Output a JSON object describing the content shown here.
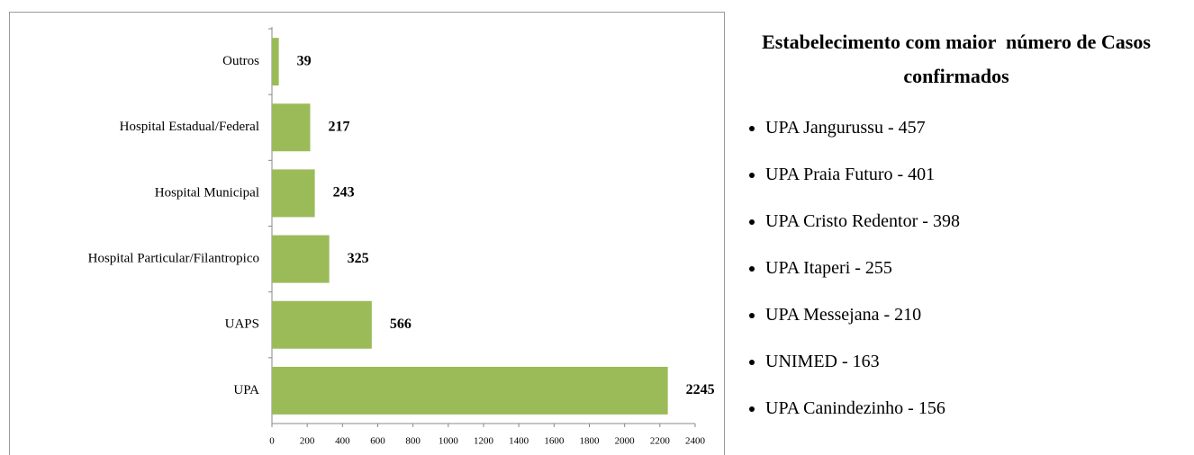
{
  "chart_data": {
    "type": "barh",
    "categories": [
      "Outros",
      "Hospital Estadual/Federal",
      "Hospital Municipal",
      "Hospital Particular/Filantropico",
      "UAPS",
      "UPA"
    ],
    "values": [
      39,
      217,
      243,
      325,
      566,
      2245
    ],
    "color": "#9bbb59",
    "xlim": [
      0,
      2400
    ],
    "xticks": [
      0,
      200,
      400,
      600,
      800,
      1000,
      1200,
      1400,
      1600,
      1800,
      2000,
      2200,
      2400
    ],
    "grid": false
  },
  "panel": {
    "title": "Estabelecimento com maior  número de Casos confirmados",
    "items": [
      "UPA Jangurussu - 457",
      "UPA Praia Futuro - 401",
      "UPA Cristo Redentor  - 398",
      "UPA Itaperi - 255",
      "UPA Messejana - 210",
      "UNIMED - 163",
      "UPA Canindezinho - 156"
    ]
  }
}
